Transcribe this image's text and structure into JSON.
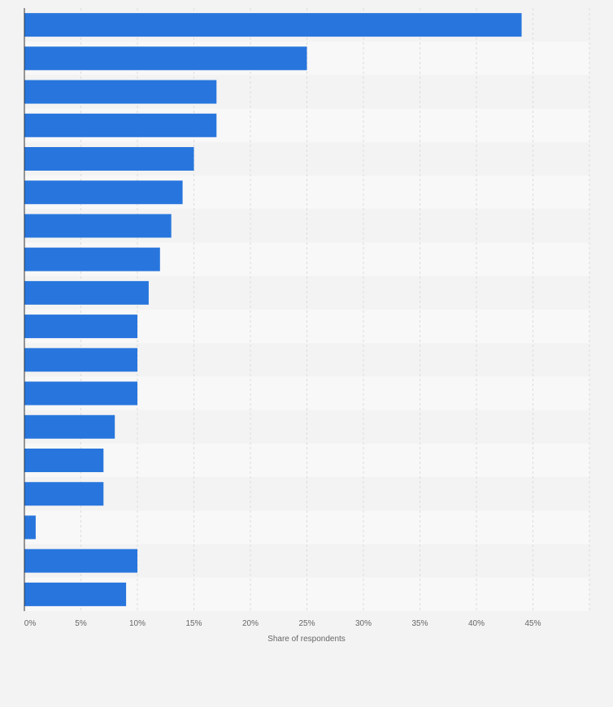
{
  "chart_data": {
    "type": "bar",
    "orientation": "horizontal",
    "title": "",
    "xlabel": "Share of respondents",
    "ylabel": "",
    "xlim": [
      0,
      50
    ],
    "x_ticks": [
      "0%",
      "5%",
      "10%",
      "15%",
      "20%",
      "25%",
      "30%",
      "35%",
      "40%",
      "45%"
    ],
    "grid": true,
    "legend": "none",
    "bar_color": "#2876dd",
    "values": [
      44,
      25,
      17,
      17,
      15,
      14,
      13,
      12,
      11,
      10,
      10,
      10,
      8,
      7,
      7,
      1,
      10,
      9
    ]
  }
}
